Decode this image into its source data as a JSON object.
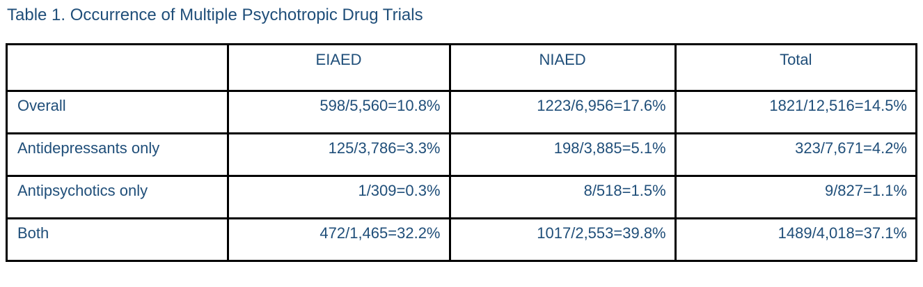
{
  "title": "Table 1. Occurrence of Multiple Psychotropic Drug Trials",
  "colors": {
    "text": "#1F4E79",
    "border": "#000000",
    "background": "#FFFFFF"
  },
  "table": {
    "columns": [
      "",
      "EIAED",
      "NIAED",
      "Total"
    ],
    "rows": [
      {
        "label": "Overall",
        "values": [
          "598/5,560=10.8%",
          "1223/6,956=17.6%",
          "1821/12,516=14.5%"
        ]
      },
      {
        "label": "Antidepressants only",
        "values": [
          "125/3,786=3.3%",
          "198/3,885=5.1%",
          "323/7,671=4.2%"
        ]
      },
      {
        "label": "Antipsychotics only",
        "values": [
          "1/309=0.3%",
          "8/518=1.5%",
          "9/827=1.1%"
        ]
      },
      {
        "label": "Both",
        "values": [
          "472/1,465=32.2%",
          "1017/2,553=39.8%",
          "1489/4,018=37.1%"
        ]
      }
    ]
  }
}
